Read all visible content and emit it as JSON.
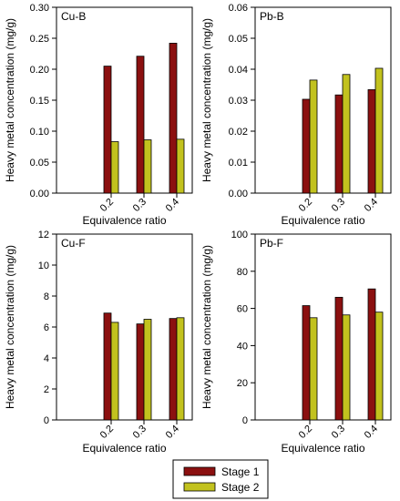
{
  "legend": {
    "items": [
      {
        "label": "Stage 1",
        "color": "#8b1010"
      },
      {
        "label": "Stage 2",
        "color": "#c2c21e"
      }
    ]
  },
  "chart_data": [
    {
      "type": "bar",
      "title": "Cu-B",
      "categories": [
        "0.2",
        "0.3",
        "0.4"
      ],
      "xlabel": "Equivalence ratio",
      "ylabel": "Heavy metal concentration (mg/g)",
      "ylim": [
        0,
        0.3
      ],
      "yticks": [
        "0.00",
        "0.05",
        "0.10",
        "0.15",
        "0.20",
        "0.25",
        "0.30"
      ],
      "series": [
        {
          "name": "Stage 1",
          "values": [
            0.205,
            0.221,
            0.242
          ]
        },
        {
          "name": "Stage 2",
          "values": [
            0.083,
            0.086,
            0.087
          ]
        }
      ]
    },
    {
      "type": "bar",
      "title": "Pb-B",
      "categories": [
        "0.2",
        "0.3",
        "0.4"
      ],
      "xlabel": "Equivalence ratio",
      "ylabel": "Heavy metal concentration (mg/g)",
      "ylim": [
        0,
        0.06
      ],
      "yticks": [
        "0.00",
        "0.01",
        "0.02",
        "0.03",
        "0.04",
        "0.05",
        "0.06"
      ],
      "series": [
        {
          "name": "Stage 1",
          "values": [
            0.0303,
            0.0317,
            0.0334
          ]
        },
        {
          "name": "Stage 2",
          "values": [
            0.0365,
            0.0383,
            0.0403
          ]
        }
      ]
    },
    {
      "type": "bar",
      "title": "Cu-F",
      "categories": [
        "0.2",
        "0.3",
        "0.4"
      ],
      "xlabel": "Equivalence ratio",
      "ylabel": "Heavy metal concentration (mg/g)",
      "ylim": [
        0,
        12
      ],
      "yticks": [
        "0",
        "2",
        "4",
        "6",
        "8",
        "10",
        "12"
      ],
      "series": [
        {
          "name": "Stage 1",
          "values": [
            6.9,
            6.2,
            6.55
          ]
        },
        {
          "name": "Stage 2",
          "values": [
            6.3,
            6.5,
            6.6
          ]
        }
      ]
    },
    {
      "type": "bar",
      "title": "Pb-F",
      "categories": [
        "0.2",
        "0.3",
        "0.4"
      ],
      "xlabel": "Equivalence ratio",
      "ylabel": "Heavy metal concentration (mg/g)",
      "ylim": [
        0,
        100
      ],
      "yticks": [
        "0",
        "20",
        "40",
        "60",
        "80",
        "100"
      ],
      "series": [
        {
          "name": "Stage 1",
          "values": [
            61.5,
            66.0,
            70.5
          ]
        },
        {
          "name": "Stage 2",
          "values": [
            55.0,
            56.5,
            58.0
          ]
        }
      ]
    }
  ]
}
